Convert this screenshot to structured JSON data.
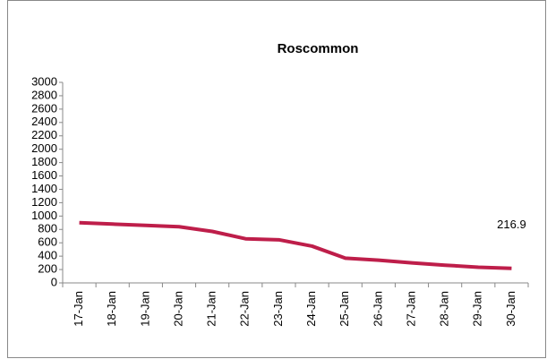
{
  "chart_data": {
    "type": "line",
    "title": "Roscommon",
    "categories": [
      "17-Jan",
      "18-Jan",
      "19-Jan",
      "20-Jan",
      "21-Jan",
      "22-Jan",
      "23-Jan",
      "24-Jan",
      "25-Jan",
      "26-Jan",
      "27-Jan",
      "28-Jan",
      "29-Jan",
      "30-Jan"
    ],
    "series": [
      {
        "name": "Roscommon",
        "color": "#be1e4a",
        "values": [
          900,
          880,
          860,
          840,
          770,
          660,
          645,
          550,
          370,
          340,
          300,
          265,
          235,
          216.9
        ]
      }
    ],
    "ylim": [
      0,
      3000
    ],
    "yticks": [
      0,
      200,
      400,
      600,
      800,
      1000,
      1200,
      1400,
      1600,
      1800,
      2000,
      2200,
      2400,
      2600,
      2800,
      3000
    ],
    "grid": false
  }
}
